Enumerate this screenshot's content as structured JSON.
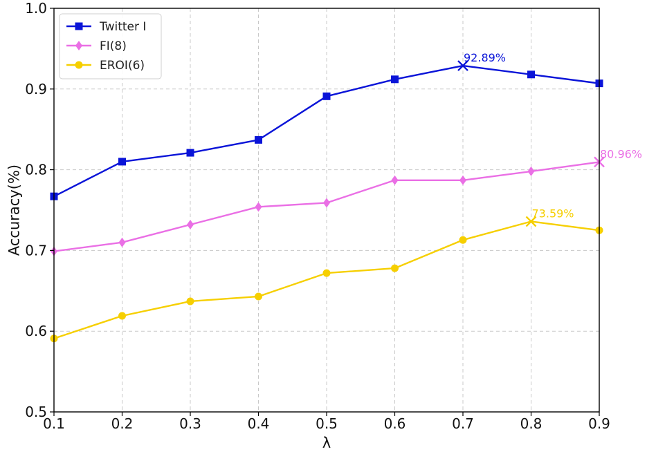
{
  "chart_data": {
    "type": "line",
    "title": "",
    "xlabel": "λ",
    "ylabel": "Accuracy(%)",
    "xlim": [
      0.1,
      0.9
    ],
    "ylim": [
      0.5,
      1.0
    ],
    "x": [
      0.1,
      0.2,
      0.3,
      0.4,
      0.5,
      0.6,
      0.7,
      0.8,
      0.9
    ],
    "x_tick_labels": [
      "0.1",
      "0.2",
      "0.3",
      "0.4",
      "0.5",
      "0.6",
      "0.7",
      "0.8",
      "0.9"
    ],
    "y_ticks": [
      0.5,
      0.6,
      0.7,
      0.8,
      0.9,
      1.0
    ],
    "y_tick_labels": [
      "0.5",
      "0.6",
      "0.7",
      "0.8",
      "0.9",
      "1.0"
    ],
    "grid": true,
    "legend_position": "top-left",
    "series": [
      {
        "name": "Twitter I",
        "color": "#0a14d8",
        "marker": "square",
        "values": [
          0.767,
          0.81,
          0.821,
          0.837,
          0.891,
          0.912,
          0.9289,
          0.918,
          0.907
        ],
        "highlight_index": 6,
        "highlight_label": "92.89%"
      },
      {
        "name": "FI(8)",
        "color": "#ea6fe5",
        "marker": "diamond",
        "values": [
          0.699,
          0.71,
          0.732,
          0.754,
          0.759,
          0.787,
          0.787,
          0.798,
          0.8096
        ],
        "highlight_index": 8,
        "highlight_label": "80.96%"
      },
      {
        "name": "EROI(6)",
        "color": "#f6cf00",
        "marker": "circle",
        "values": [
          0.591,
          0.619,
          0.637,
          0.643,
          0.672,
          0.678,
          0.713,
          0.7359,
          0.725
        ],
        "highlight_index": 7,
        "highlight_label": "73.59%"
      }
    ]
  }
}
